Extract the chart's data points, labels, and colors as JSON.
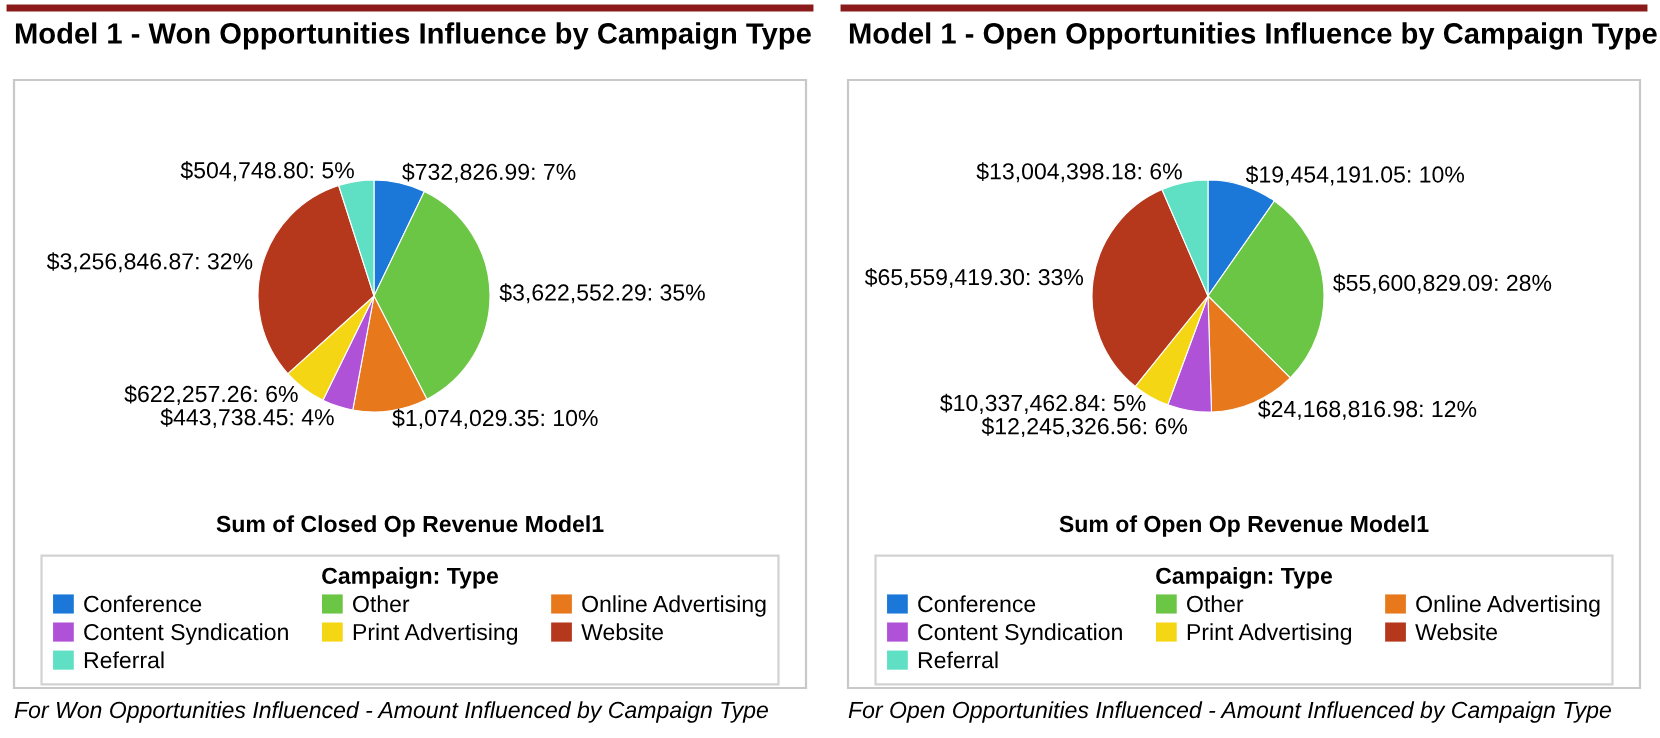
{
  "chart_data": [
    {
      "type": "pie",
      "title": "Model 1 - Won Opportunities Influence by Campaign Type",
      "xlabel": "Sum of Closed Op Revenue Model1",
      "legend_title": "Campaign: Type",
      "legend": "bottom",
      "categories": [
        "Conference",
        "Other",
        "Online Advertising",
        "Content Syndication",
        "Print Advertising",
        "Website",
        "Referral"
      ],
      "values": [
        732826.99,
        3622552.29,
        1074029.35,
        443738.45,
        622257.26,
        3256846.87,
        504748.8
      ],
      "value_labels": [
        "$732,826.99: 7%",
        "$3,622,552.29: 35%",
        "$1,074,029.35: 10%",
        "$443,738.45: 4%",
        "$622,257.26: 6%",
        "$3,256,846.87: 32%",
        "$504,748.80: 5%"
      ],
      "colors": [
        "#1b78d8",
        "#6cc645",
        "#e8781c",
        "#b052d8",
        "#f5d614",
        "#b5381c",
        "#5fe0c4"
      ],
      "annotations": [
        "For Won Opportunities Influenced - Amount Influenced by Campaign Type"
      ]
    },
    {
      "type": "pie",
      "title": "Model 1 - Open Opportunities Influence by Campaign Type",
      "xlabel": "Sum of Open Op Revenue Model1",
      "legend_title": "Campaign: Type",
      "legend": "bottom",
      "categories": [
        "Conference",
        "Other",
        "Online Advertising",
        "Content Syndication",
        "Print Advertising",
        "Website",
        "Referral"
      ],
      "values": [
        19454191.05,
        55600829.09,
        24168816.98,
        12245326.56,
        10337462.84,
        65559419.3,
        13004398.18
      ],
      "value_labels": [
        "$19,454,191.05: 10%",
        "$55,600,829.09: 28%",
        "$24,168,816.98: 12%",
        "$12,245,326.56: 6%",
        "$10,337,462.84: 5%",
        "$65,559,419.30: 33%",
        "$13,004,398.18: 6%"
      ],
      "colors": [
        "#1b78d8",
        "#6cc645",
        "#e8781c",
        "#b052d8",
        "#f5d614",
        "#b5381c",
        "#5fe0c4"
      ],
      "annotations": [
        "For Open Opportunities Influenced - Amount Influenced by Campaign Type"
      ]
    }
  ]
}
